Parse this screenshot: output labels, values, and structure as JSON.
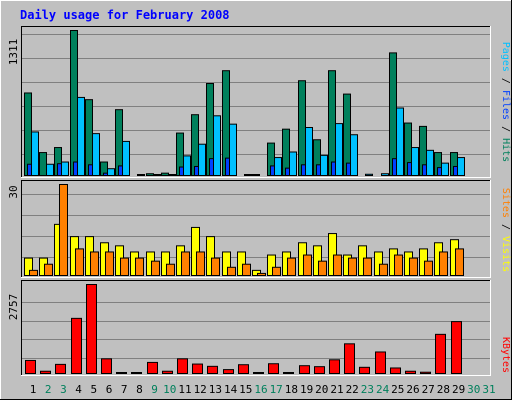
{
  "chart_data": {
    "type": "bar",
    "title": "Daily usage for February 2008",
    "colors": {
      "background": "#c0c0c0",
      "hits": "#00805c",
      "files": "#0040ff",
      "pages": "#00c0ff",
      "visits": "#ffff00",
      "sites": "#ff8000",
      "kbytes": "#ff0000",
      "weekend_label": "#00805c",
      "weekday_label": "#000000",
      "title": "#0000ff"
    },
    "x": {
      "categories": [
        "1",
        "2",
        "3",
        "4",
        "5",
        "6",
        "7",
        "8",
        "9",
        "10",
        "11",
        "12",
        "13",
        "14",
        "15",
        "16",
        "17",
        "18",
        "19",
        "20",
        "21",
        "22",
        "23",
        "24",
        "25",
        "26",
        "27",
        "28",
        "29",
        "30",
        "31"
      ],
      "weekend": [
        "2",
        "3",
        "9",
        "10",
        "16",
        "17",
        "23",
        "24",
        "30",
        "31"
      ]
    },
    "panels": [
      {
        "max_label": "1311",
        "ylim": [
          0,
          1311
        ],
        "side_label": [
          "Pages",
          "Files",
          "Hits"
        ],
        "series": [
          {
            "name": "Hits",
            "values": [
              750,
              215,
              260,
              1311,
              690,
              130,
              600,
              0,
              25,
              30,
              390,
              555,
              835,
              950,
              0,
              5,
              300,
              425,
              860,
              330,
              950,
              740,
              0,
              0,
              1110,
              480,
              450,
              215,
              215,
              0,
              0
            ]
          },
          {
            "name": "Files",
            "values": [
              110,
              0,
              115,
              130,
              105,
              30,
              95,
              0,
              0,
              0,
              85,
              90,
              160,
              165,
              0,
              0,
              95,
              75,
              105,
              105,
              130,
              120,
              0,
              0,
              160,
              125,
              105,
              80,
              90,
              0,
              0
            ]
          },
          {
            "name": "Pages",
            "values": [
              400,
              110,
              130,
              710,
              385,
              70,
              315,
              10,
              15,
              15,
              185,
              290,
              545,
              470,
              5,
              0,
              170,
              220,
              440,
              190,
              475,
              375,
              20,
              25,
              615,
              260,
              235,
              120,
              170,
              0,
              0
            ]
          }
        ]
      },
      {
        "max_label": "30",
        "ylim": [
          0,
          30
        ],
        "side_label": [
          "Sites",
          "Visits"
        ],
        "series": [
          {
            "name": "Visits",
            "values": [
              6,
              6,
              17,
              13,
              13,
              11,
              10,
              8,
              8,
              8,
              10,
              16,
              13,
              8,
              8,
              2,
              7,
              8,
              11,
              10,
              14,
              7,
              10,
              8,
              9,
              8,
              9,
              11,
              12,
              0,
              0
            ]
          },
          {
            "name": "Sites",
            "values": [
              2,
              4,
              30,
              9,
              8,
              8,
              6,
              6,
              5,
              4,
              8,
              8,
              6,
              3,
              4,
              1,
              3,
              6,
              7,
              5,
              7,
              6,
              6,
              4,
              7,
              6,
              5,
              8,
              9,
              0,
              0
            ]
          }
        ]
      },
      {
        "max_label": "2757",
        "ylim": [
          0,
          2757
        ],
        "side_label": [
          "KBytes"
        ],
        "series": [
          {
            "name": "KBytes",
            "values": [
              430,
              100,
              310,
              1720,
              2757,
              480,
              30,
              30,
              370,
              100,
              480,
              320,
              250,
              150,
              300,
              50,
              330,
              30,
              270,
              240,
              450,
              940,
              220,
              690,
              200,
              100,
              70,
              1230,
              1620,
              0,
              0
            ]
          }
        ]
      }
    ]
  }
}
